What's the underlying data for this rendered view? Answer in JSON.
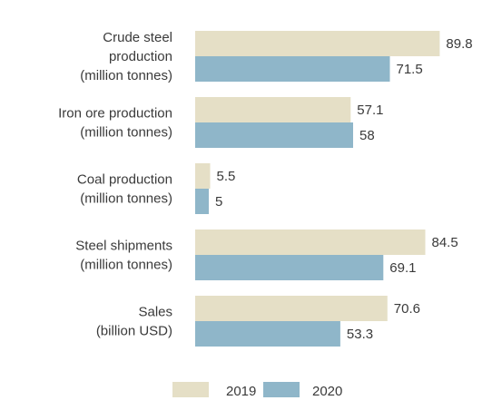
{
  "chart_data": {
    "type": "bar",
    "orientation": "horizontal",
    "categories": [
      [
        "Crude steel",
        "production",
        "(million tonnes)"
      ],
      [
        "Iron ore production",
        "(million tonnes)"
      ],
      [
        "Coal production",
        "(million tonnes)"
      ],
      [
        "Steel shipments",
        "(million tonnes)"
      ],
      [
        "Sales",
        "(billion USD)"
      ]
    ],
    "series": [
      {
        "name": "2019",
        "color": "#e5dfc6",
        "values": [
          89.8,
          57.1,
          5.5,
          84.5,
          70.6
        ],
        "value_labels": [
          "89.8",
          "57.1",
          "5.5",
          "84.5",
          "70.6"
        ]
      },
      {
        "name": "2020",
        "color": "#8fb6c9",
        "values": [
          71.5,
          58,
          5,
          69.1,
          53.3
        ],
        "value_labels": [
          "71.5",
          "58",
          "5",
          "69.1",
          "53.3"
        ]
      }
    ],
    "title": "",
    "xlabel": "",
    "ylabel": "",
    "xlim": [
      0,
      100
    ],
    "grid": false,
    "legend_position": "bottom-center"
  }
}
